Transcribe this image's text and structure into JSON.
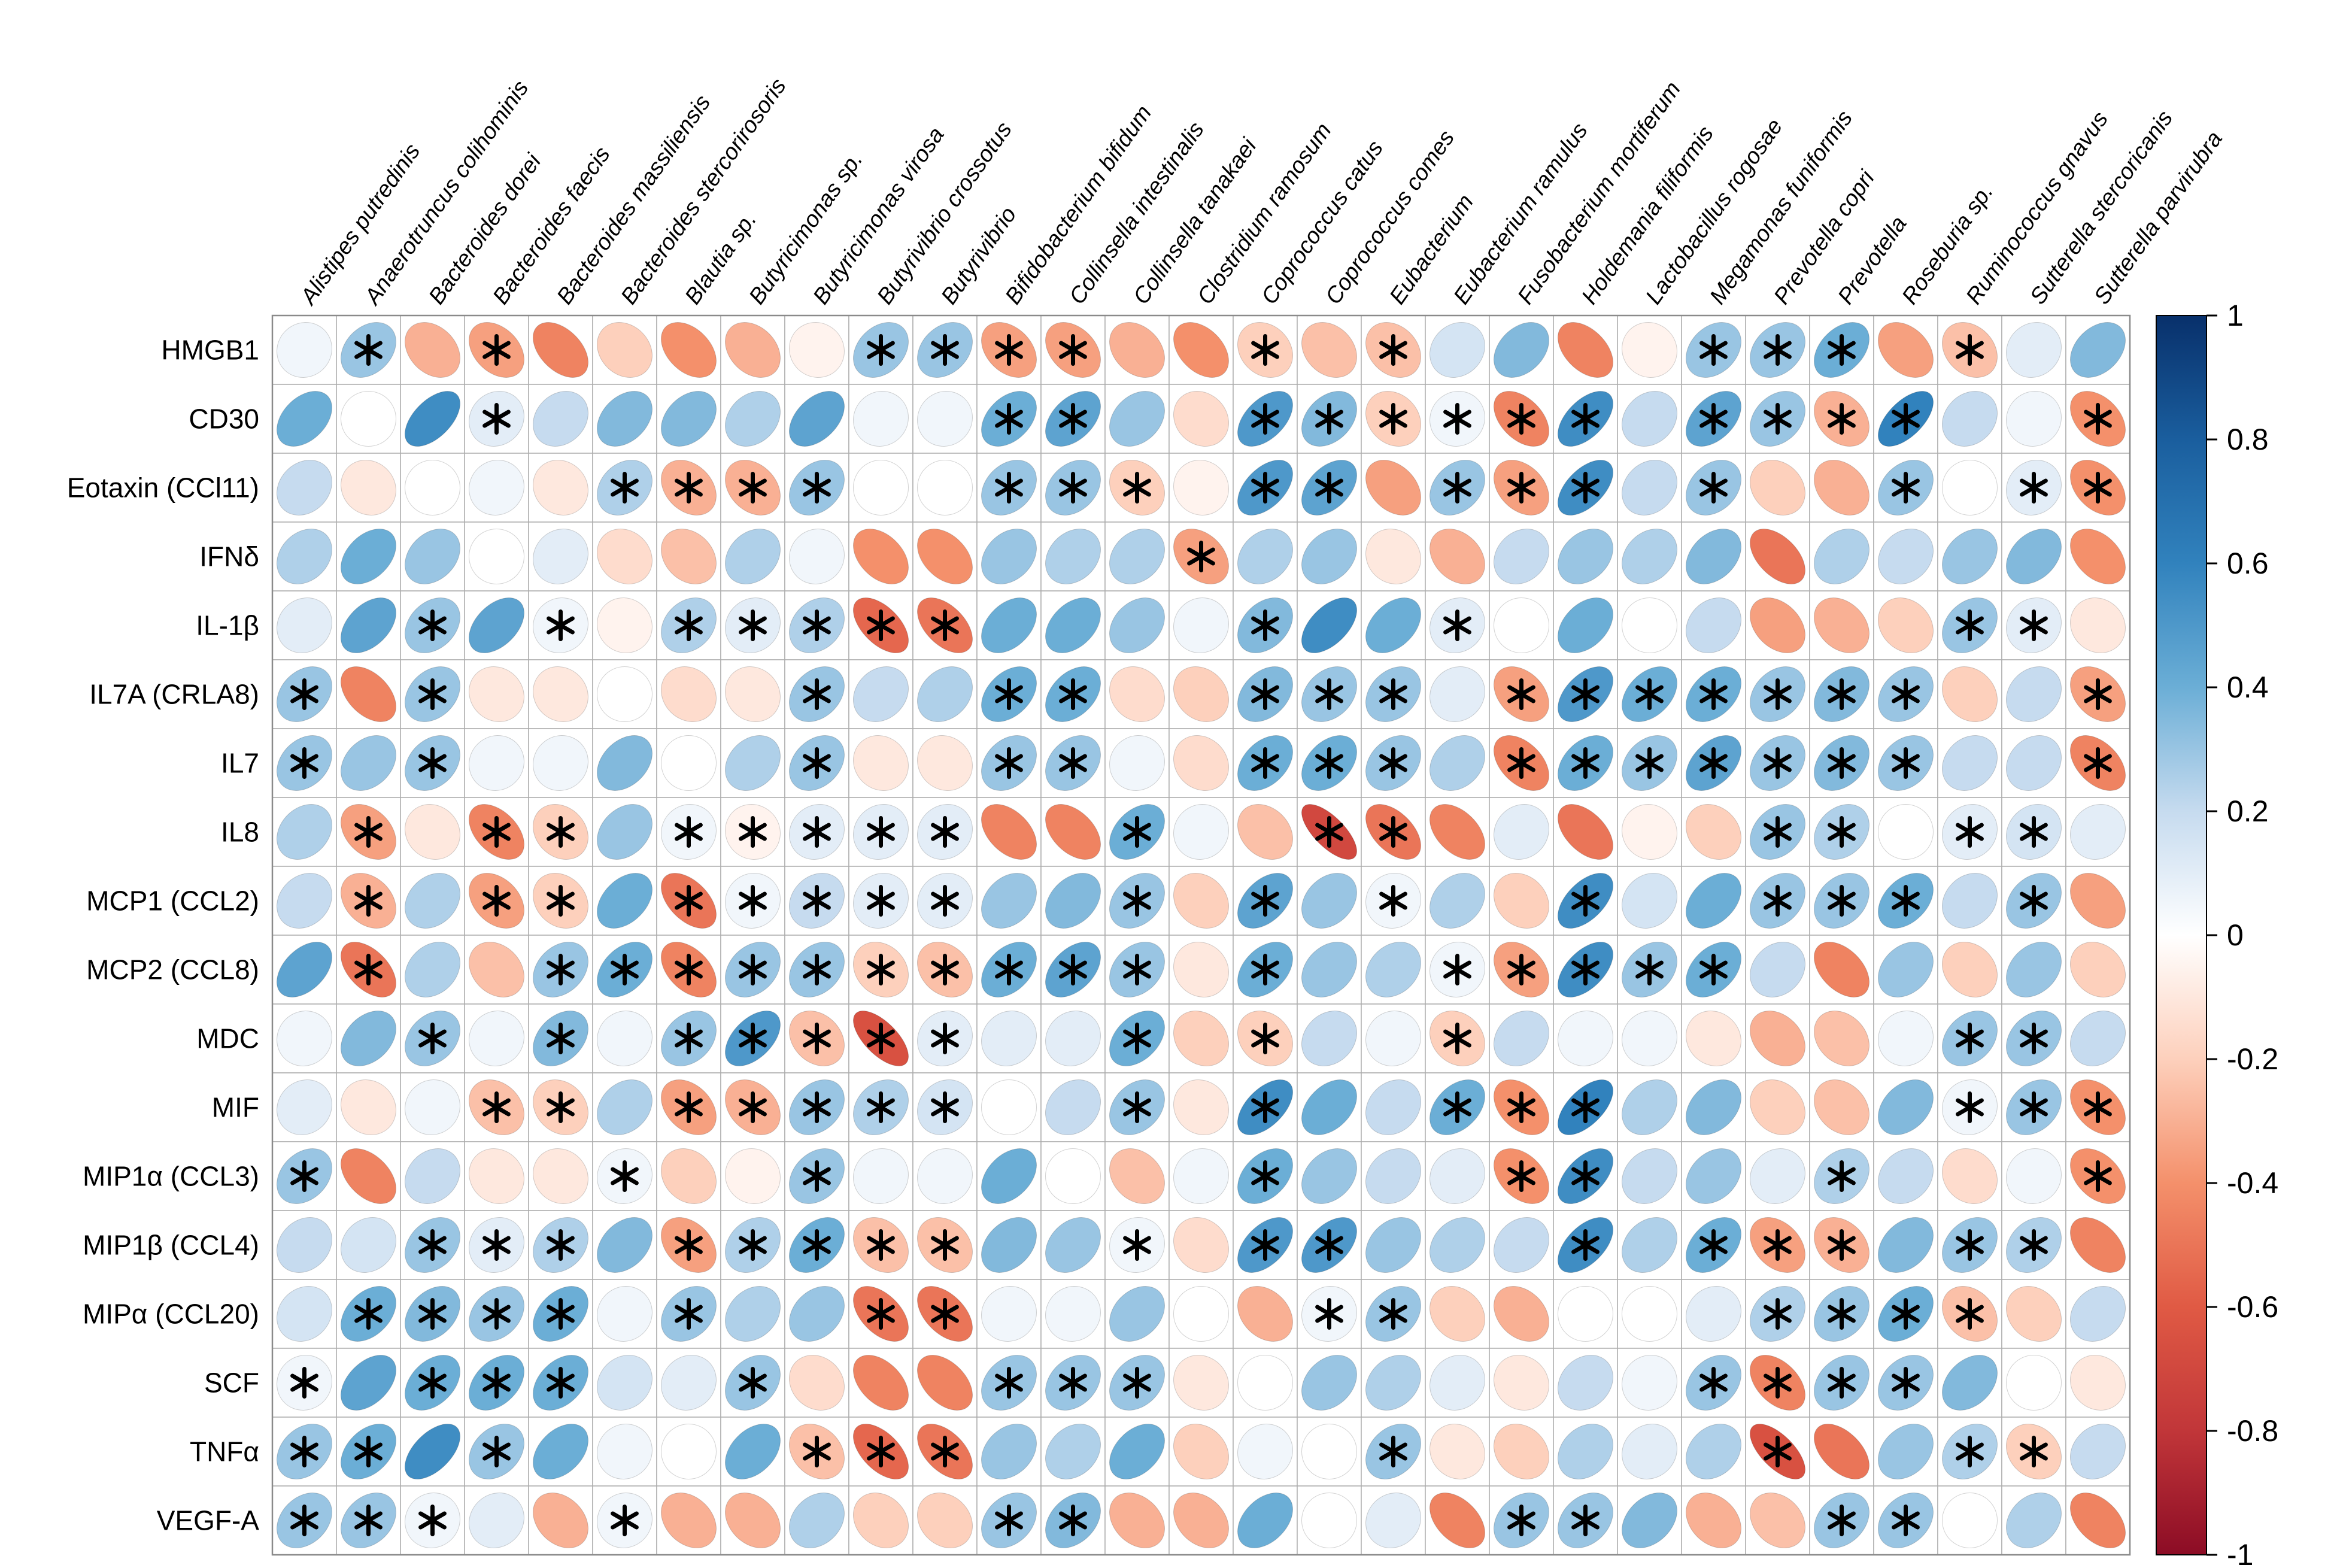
{
  "chart_data": {
    "type": "heatmap",
    "subtype": "correlation-ellipse-matrix",
    "title": "",
    "rows": [
      "HMGB1",
      "CD30",
      "Eotaxin (CCl11)",
      "IFNδ",
      "IL-1β",
      "IL7A (CRLA8)",
      "IL7",
      "IL8",
      "MCP1 (CCL2)",
      "MCP2 (CCL8)",
      "MDC",
      "MIF",
      "MIP1α (CCL3)",
      "MIP1β (CCL4)",
      "MIPα (CCL20)",
      "SCF",
      "TNFα",
      "VEGF-A"
    ],
    "columns": [
      "Alistipes putredinis",
      "Anaerotruncus colihominis",
      "Bacteroides dorei",
      "Bacteroides faecis",
      "Bacteroides massiliensis",
      "Bacteroides stercorirosoris",
      "Blautia sp.",
      "Butyricimonas sp.",
      "Butyricimonas virosa",
      "Butyrivibrio crossotus",
      "Butyrivibrio",
      "Bifidobacterium bifidum",
      "Collinsella intestinalis",
      "Collinsella tanakaei",
      "Clostridium ramosum",
      "Coprococcus catus",
      "Coprococcus comes",
      "Eubacterium",
      "Eubacterium ramulus",
      "Fusobacterium mortiferum",
      "Holdemania filiformis",
      "Lactobacillus rogosae",
      "Megamonas funiformis",
      "Prevotella copri",
      "Prevotella",
      "Roseburia sp.",
      "Ruminococcus gnavus",
      "Sutterella stercoricanis",
      "Sutterella parvirubra"
    ],
    "values": [
      [
        0.05,
        0.3,
        -0.3,
        -0.35,
        -0.45,
        -0.2,
        -0.4,
        -0.3,
        -0.05,
        0.3,
        0.3,
        -0.35,
        -0.35,
        -0.3,
        -0.4,
        -0.2,
        -0.25,
        -0.25,
        0.15,
        0.35,
        -0.45,
        -0.05,
        0.3,
        0.3,
        0.4,
        -0.35,
        -0.25,
        0.1,
        0.35
      ],
      [
        0.4,
        0.0,
        0.55,
        0.1,
        0.2,
        0.35,
        0.35,
        0.25,
        0.45,
        0.05,
        0.05,
        0.4,
        0.45,
        0.3,
        -0.15,
        0.5,
        0.35,
        -0.2,
        0.05,
        -0.45,
        0.55,
        0.2,
        0.45,
        0.3,
        -0.3,
        0.6,
        0.2,
        0.05,
        -0.4
      ],
      [
        0.2,
        -0.1,
        0.0,
        0.05,
        -0.1,
        0.25,
        -0.3,
        -0.3,
        0.3,
        0.0,
        0.0,
        0.3,
        0.3,
        -0.2,
        -0.05,
        0.5,
        0.45,
        -0.35,
        0.3,
        -0.35,
        0.55,
        0.2,
        0.3,
        -0.2,
        -0.3,
        0.3,
        0.0,
        0.1,
        -0.4
      ],
      [
        0.25,
        0.4,
        0.3,
        0.0,
        0.1,
        -0.15,
        -0.25,
        0.25,
        0.05,
        -0.4,
        -0.4,
        0.3,
        0.25,
        0.25,
        -0.35,
        0.25,
        0.3,
        -0.1,
        -0.3,
        0.2,
        0.3,
        0.25,
        0.35,
        -0.5,
        0.25,
        0.2,
        0.3,
        0.35,
        -0.4
      ],
      [
        0.1,
        0.45,
        0.3,
        0.45,
        0.05,
        -0.05,
        0.25,
        0.1,
        0.25,
        -0.55,
        -0.5,
        0.4,
        0.4,
        0.3,
        0.05,
        0.35,
        0.55,
        0.4,
        0.1,
        0.0,
        0.4,
        0.0,
        0.2,
        -0.35,
        -0.3,
        -0.2,
        0.3,
        0.1,
        -0.1
      ],
      [
        0.3,
        -0.45,
        0.3,
        -0.1,
        -0.1,
        0.0,
        -0.15,
        -0.1,
        0.3,
        0.2,
        0.25,
        0.4,
        0.4,
        -0.15,
        -0.2,
        0.35,
        0.3,
        0.3,
        0.1,
        -0.35,
        0.5,
        0.4,
        0.4,
        0.3,
        0.35,
        0.3,
        -0.2,
        0.2,
        -0.35
      ],
      [
        0.3,
        0.3,
        0.3,
        0.05,
        0.05,
        0.35,
        0.0,
        0.25,
        0.3,
        -0.1,
        -0.1,
        0.3,
        0.3,
        0.05,
        -0.15,
        0.4,
        0.4,
        0.3,
        0.25,
        -0.45,
        0.4,
        0.3,
        0.45,
        0.3,
        0.35,
        0.3,
        0.2,
        0.2,
        -0.45
      ],
      [
        0.25,
        -0.35,
        -0.1,
        -0.45,
        -0.2,
        0.3,
        0.05,
        -0.05,
        0.1,
        0.1,
        0.1,
        -0.45,
        -0.45,
        0.4,
        0.05,
        -0.25,
        -0.7,
        -0.5,
        -0.45,
        0.1,
        -0.5,
        -0.05,
        -0.2,
        0.3,
        0.25,
        0.0,
        0.1,
        0.15,
        0.1
      ],
      [
        0.2,
        -0.3,
        0.25,
        -0.35,
        -0.2,
        0.4,
        -0.5,
        0.05,
        0.2,
        0.1,
        0.1,
        0.3,
        0.35,
        0.3,
        -0.2,
        0.45,
        0.3,
        0.05,
        0.25,
        -0.2,
        0.55,
        0.15,
        0.4,
        0.3,
        0.3,
        0.4,
        0.2,
        0.3,
        -0.35
      ],
      [
        0.45,
        -0.5,
        0.25,
        -0.25,
        0.3,
        0.4,
        -0.45,
        0.3,
        0.3,
        -0.2,
        -0.25,
        0.4,
        0.45,
        0.3,
        -0.1,
        0.4,
        0.3,
        0.25,
        0.05,
        -0.35,
        0.55,
        0.3,
        0.4,
        0.2,
        -0.45,
        0.3,
        -0.2,
        0.3,
        -0.2
      ],
      [
        0.05,
        0.35,
        0.3,
        0.05,
        0.35,
        0.05,
        0.3,
        0.5,
        -0.25,
        -0.65,
        0.1,
        0.1,
        0.1,
        0.4,
        -0.2,
        -0.2,
        0.2,
        0.05,
        -0.2,
        0.2,
        0.05,
        0.05,
        -0.1,
        -0.3,
        -0.25,
        0.05,
        0.3,
        0.3,
        0.2
      ],
      [
        0.1,
        -0.1,
        0.05,
        -0.25,
        -0.2,
        0.25,
        -0.35,
        -0.3,
        0.3,
        0.25,
        0.15,
        0.0,
        0.2,
        0.3,
        -0.1,
        0.55,
        0.4,
        0.2,
        0.4,
        -0.4,
        0.6,
        0.25,
        0.35,
        -0.2,
        -0.25,
        0.35,
        0.05,
        0.3,
        -0.4
      ],
      [
        0.3,
        -0.45,
        0.2,
        -0.1,
        -0.1,
        0.05,
        -0.2,
        -0.05,
        0.3,
        0.05,
        0.05,
        0.4,
        0.0,
        -0.25,
        0.05,
        0.4,
        0.3,
        0.2,
        0.1,
        -0.4,
        0.55,
        0.2,
        0.3,
        0.1,
        0.25,
        0.2,
        -0.15,
        0.05,
        -0.4
      ],
      [
        0.2,
        0.15,
        0.3,
        0.1,
        0.25,
        0.35,
        -0.35,
        0.25,
        0.4,
        -0.25,
        -0.25,
        0.35,
        0.3,
        0.05,
        -0.15,
        0.5,
        0.5,
        0.3,
        0.25,
        0.2,
        0.55,
        0.25,
        0.4,
        -0.35,
        -0.3,
        0.35,
        0.3,
        0.25,
        -0.45
      ],
      [
        0.15,
        0.4,
        0.35,
        0.3,
        0.4,
        0.05,
        0.3,
        0.25,
        0.3,
        -0.5,
        -0.5,
        0.05,
        0.05,
        0.3,
        0.0,
        -0.3,
        0.05,
        0.3,
        -0.2,
        -0.3,
        0.0,
        0.0,
        0.1,
        0.25,
        0.3,
        0.4,
        -0.25,
        -0.2,
        0.2
      ],
      [
        0.05,
        0.45,
        0.4,
        0.4,
        0.4,
        0.15,
        0.1,
        0.3,
        -0.15,
        -0.45,
        -0.45,
        0.3,
        0.3,
        0.3,
        -0.1,
        0.0,
        0.3,
        0.25,
        0.1,
        -0.1,
        0.2,
        0.05,
        0.3,
        -0.45,
        0.3,
        0.3,
        0.35,
        0.0,
        -0.1
      ],
      [
        0.3,
        0.4,
        0.55,
        0.3,
        0.4,
        0.05,
        0.0,
        0.4,
        -0.25,
        -0.55,
        -0.5,
        0.3,
        0.25,
        0.4,
        -0.2,
        0.05,
        0.0,
        0.3,
        -0.1,
        -0.2,
        0.25,
        0.1,
        0.25,
        -0.65,
        -0.5,
        0.3,
        0.25,
        -0.2,
        0.2
      ],
      [
        0.3,
        0.3,
        0.05,
        0.1,
        -0.3,
        0.05,
        -0.3,
        -0.3,
        0.25,
        -0.2,
        -0.2,
        0.3,
        0.35,
        -0.3,
        -0.3,
        0.4,
        0.0,
        0.1,
        -0.45,
        0.3,
        0.3,
        0.35,
        -0.3,
        -0.25,
        0.3,
        0.3,
        0.0,
        0.25,
        -0.45
      ]
    ],
    "significant": [
      [
        0,
        1,
        0,
        1,
        0,
        0,
        0,
        0,
        0,
        1,
        1,
        1,
        1,
        0,
        0,
        1,
        0,
        1,
        0,
        0,
        0,
        0,
        1,
        1,
        1,
        0,
        1,
        0,
        0
      ],
      [
        0,
        0,
        0,
        1,
        0,
        0,
        0,
        0,
        0,
        0,
        0,
        1,
        1,
        0,
        0,
        1,
        1,
        1,
        1,
        1,
        1,
        0,
        1,
        1,
        1,
        1,
        0,
        0,
        1
      ],
      [
        0,
        0,
        0,
        0,
        0,
        1,
        1,
        1,
        1,
        0,
        0,
        1,
        1,
        1,
        0,
        1,
        1,
        0,
        1,
        1,
        1,
        0,
        1,
        0,
        0,
        1,
        0,
        1,
        1
      ],
      [
        0,
        0,
        0,
        0,
        0,
        0,
        0,
        0,
        0,
        0,
        0,
        0,
        0,
        0,
        1,
        0,
        0,
        0,
        0,
        0,
        0,
        0,
        0,
        0,
        0,
        0,
        0,
        0,
        0
      ],
      [
        0,
        0,
        1,
        0,
        1,
        0,
        1,
        1,
        1,
        1,
        1,
        0,
        0,
        0,
        0,
        1,
        0,
        0,
        1,
        0,
        0,
        0,
        0,
        0,
        0,
        0,
        1,
        1,
        0
      ],
      [
        1,
        0,
        1,
        0,
        0,
        0,
        0,
        0,
        1,
        0,
        0,
        1,
        1,
        0,
        0,
        1,
        1,
        1,
        0,
        1,
        1,
        1,
        1,
        1,
        1,
        1,
        0,
        0,
        1
      ],
      [
        1,
        0,
        1,
        0,
        0,
        0,
        0,
        0,
        1,
        0,
        0,
        1,
        1,
        0,
        0,
        1,
        1,
        1,
        0,
        1,
        1,
        1,
        1,
        1,
        1,
        1,
        0,
        0,
        1
      ],
      [
        0,
        1,
        0,
        1,
        1,
        0,
        1,
        1,
        1,
        1,
        1,
        0,
        0,
        1,
        0,
        0,
        1,
        1,
        0,
        0,
        0,
        0,
        0,
        1,
        1,
        0,
        1,
        1,
        0
      ],
      [
        0,
        1,
        0,
        1,
        1,
        0,
        1,
        1,
        1,
        1,
        1,
        0,
        0,
        1,
        0,
        1,
        0,
        1,
        0,
        0,
        1,
        0,
        0,
        1,
        1,
        1,
        0,
        1,
        0
      ],
      [
        0,
        1,
        0,
        0,
        1,
        1,
        1,
        1,
        1,
        1,
        1,
        1,
        1,
        1,
        0,
        1,
        0,
        0,
        1,
        1,
        1,
        1,
        1,
        0,
        0,
        0,
        0,
        0,
        0
      ],
      [
        0,
        0,
        1,
        0,
        1,
        0,
        1,
        1,
        1,
        1,
        1,
        0,
        0,
        1,
        0,
        1,
        0,
        0,
        1,
        0,
        0,
        0,
        0,
        0,
        0,
        0,
        1,
        1,
        0
      ],
      [
        0,
        0,
        0,
        1,
        1,
        0,
        1,
        1,
        1,
        1,
        1,
        0,
        0,
        1,
        0,
        1,
        0,
        0,
        1,
        1,
        1,
        0,
        0,
        0,
        0,
        0,
        1,
        1,
        1
      ],
      [
        1,
        0,
        0,
        0,
        0,
        1,
        0,
        0,
        1,
        0,
        0,
        0,
        0,
        0,
        0,
        1,
        0,
        0,
        0,
        1,
        1,
        0,
        0,
        0,
        1,
        0,
        0,
        0,
        1
      ],
      [
        0,
        0,
        1,
        1,
        1,
        0,
        1,
        1,
        1,
        1,
        1,
        0,
        0,
        1,
        0,
        1,
        1,
        0,
        0,
        0,
        1,
        0,
        1,
        1,
        1,
        0,
        1,
        1,
        0
      ],
      [
        0,
        1,
        1,
        1,
        1,
        0,
        1,
        0,
        0,
        1,
        1,
        0,
        0,
        0,
        0,
        0,
        1,
        1,
        0,
        0,
        0,
        0,
        0,
        1,
        1,
        1,
        1,
        0,
        0
      ],
      [
        1,
        0,
        1,
        1,
        1,
        0,
        0,
        1,
        0,
        0,
        0,
        1,
        1,
        1,
        0,
        0,
        0,
        0,
        0,
        0,
        0,
        0,
        1,
        1,
        1,
        1,
        0,
        0,
        0
      ],
      [
        1,
        1,
        0,
        1,
        0,
        0,
        0,
        0,
        1,
        1,
        1,
        0,
        0,
        0,
        0,
        0,
        0,
        1,
        0,
        0,
        0,
        0,
        0,
        1,
        0,
        0,
        1,
        1,
        0
      ],
      [
        1,
        1,
        1,
        0,
        0,
        1,
        0,
        0,
        0,
        0,
        0,
        1,
        1,
        0,
        0,
        0,
        0,
        0,
        0,
        1,
        1,
        0,
        0,
        0,
        1,
        1,
        0,
        0,
        0
      ]
    ],
    "colorbar": {
      "min": -1,
      "max": 1,
      "ticks": [
        "1",
        "0.8",
        "0.6",
        "0.4",
        "0.2",
        "0",
        "-0.2",
        "-0.4",
        "-0.6",
        "-0.8",
        "-1"
      ],
      "tick_values": [
        1,
        0.8,
        0.6,
        0.4,
        0.2,
        0,
        -0.2,
        -0.4,
        -0.6,
        -0.8,
        -1
      ]
    },
    "color_stops": [
      [
        -1.0,
        "#8C0C25"
      ],
      [
        -0.8,
        "#C13639"
      ],
      [
        -0.6,
        "#E05A44"
      ],
      [
        -0.4,
        "#F4906B"
      ],
      [
        -0.2,
        "#FDD0BC"
      ],
      [
        0.0,
        "#FFFFFF"
      ],
      [
        0.2,
        "#C6DBEF"
      ],
      [
        0.4,
        "#6BAED6"
      ],
      [
        0.6,
        "#3182BD"
      ],
      [
        0.8,
        "#1A5E9E"
      ],
      [
        1.0,
        "#08306B"
      ]
    ],
    "grid_line_color": "#ADADAD",
    "significance_marker": "*",
    "legend_position": "right"
  }
}
